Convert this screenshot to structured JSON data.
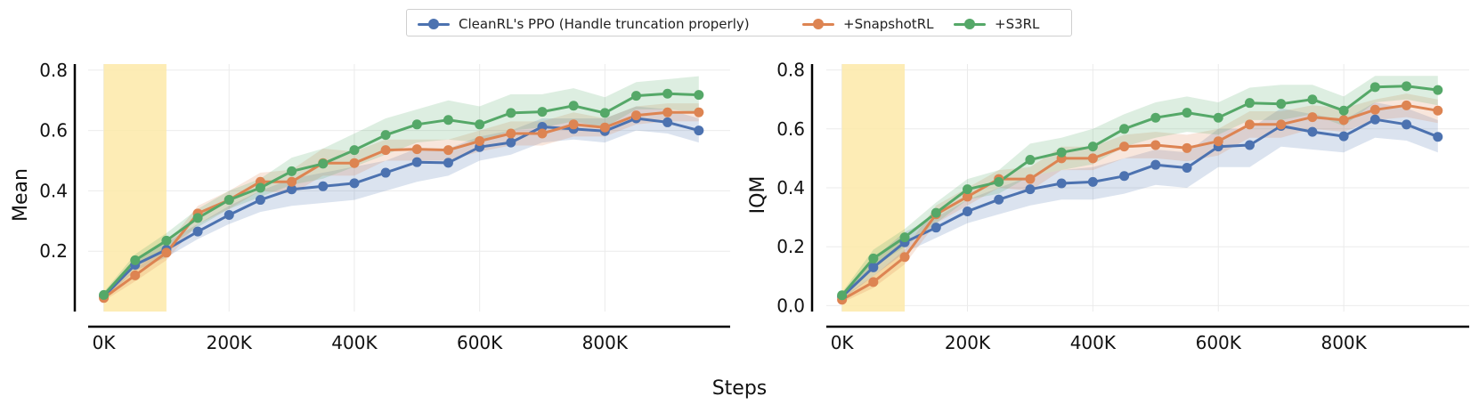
{
  "xlabel": "Steps",
  "legend": [
    {
      "label": "CleanRL's PPO (Handle truncation properly)",
      "color": "#4c72b0"
    },
    {
      "label": "+SnapshotRL",
      "color": "#dd8452"
    },
    {
      "label": "+S3RL",
      "color": "#55a868"
    }
  ],
  "highlight_color": "#fde9a8",
  "chart_data": [
    {
      "type": "line",
      "ylabel": "Mean",
      "xlabel": "Steps",
      "xlim": [
        -25000,
        1000000
      ],
      "ylim": [
        0.0,
        0.82
      ],
      "xticks": [
        0,
        200000,
        400000,
        600000,
        800000
      ],
      "xtick_labels": [
        "0K",
        "200K",
        "400K",
        "600K",
        "800K"
      ],
      "yticks": [
        0.2,
        0.4,
        0.6,
        0.8
      ],
      "ytick_labels": [
        "0.2",
        "0.4",
        "0.6",
        "0.8"
      ],
      "highlight_x": [
        0,
        100000
      ],
      "x": [
        0,
        50000,
        100000,
        150000,
        200000,
        250000,
        300000,
        350000,
        400000,
        450000,
        500000,
        550000,
        600000,
        650000,
        700000,
        750000,
        800000,
        850000,
        900000,
        950000
      ],
      "series": [
        {
          "name": "CleanRL's PPO (Handle truncation properly)",
          "values": [
            0.05,
            0.155,
            0.205,
            0.265,
            0.32,
            0.37,
            0.405,
            0.415,
            0.425,
            0.46,
            0.495,
            0.493,
            0.545,
            0.56,
            0.612,
            0.605,
            0.598,
            0.64,
            0.627,
            0.6
          ],
          "lower": [
            0.04,
            0.135,
            0.18,
            0.24,
            0.29,
            0.33,
            0.35,
            0.36,
            0.37,
            0.4,
            0.43,
            0.45,
            0.5,
            0.52,
            0.56,
            0.57,
            0.56,
            0.6,
            0.59,
            0.56
          ],
          "upper": [
            0.06,
            0.175,
            0.23,
            0.29,
            0.35,
            0.4,
            0.44,
            0.46,
            0.48,
            0.5,
            0.54,
            0.54,
            0.58,
            0.6,
            0.64,
            0.64,
            0.64,
            0.68,
            0.67,
            0.64
          ]
        },
        {
          "name": "+SnapshotRL",
          "values": [
            0.045,
            0.12,
            0.195,
            0.325,
            0.37,
            0.43,
            0.43,
            0.492,
            0.492,
            0.535,
            0.538,
            0.535,
            0.565,
            0.59,
            0.59,
            0.62,
            0.61,
            0.65,
            0.66,
            0.66
          ],
          "lower": [
            0.035,
            0.1,
            0.17,
            0.29,
            0.34,
            0.4,
            0.39,
            0.45,
            0.45,
            0.5,
            0.5,
            0.5,
            0.53,
            0.55,
            0.55,
            0.58,
            0.58,
            0.62,
            0.63,
            0.63
          ],
          "upper": [
            0.055,
            0.14,
            0.22,
            0.35,
            0.4,
            0.46,
            0.47,
            0.54,
            0.53,
            0.57,
            0.57,
            0.57,
            0.6,
            0.63,
            0.63,
            0.66,
            0.64,
            0.68,
            0.69,
            0.69
          ]
        },
        {
          "name": "+S3RL",
          "values": [
            0.055,
            0.17,
            0.235,
            0.31,
            0.37,
            0.41,
            0.465,
            0.49,
            0.535,
            0.585,
            0.62,
            0.635,
            0.62,
            0.658,
            0.662,
            0.682,
            0.658,
            0.715,
            0.722,
            0.718
          ],
          "lower": [
            0.045,
            0.15,
            0.21,
            0.28,
            0.34,
            0.38,
            0.42,
            0.44,
            0.48,
            0.52,
            0.56,
            0.57,
            0.56,
            0.6,
            0.61,
            0.63,
            0.61,
            0.67,
            0.67,
            0.66
          ],
          "upper": [
            0.065,
            0.19,
            0.26,
            0.34,
            0.4,
            0.44,
            0.51,
            0.54,
            0.59,
            0.64,
            0.67,
            0.7,
            0.68,
            0.72,
            0.72,
            0.74,
            0.71,
            0.76,
            0.77,
            0.78
          ]
        }
      ]
    },
    {
      "type": "line",
      "ylabel": "IQM",
      "xlabel": "Steps",
      "xlim": [
        -25000,
        1000000
      ],
      "ylim": [
        -0.02,
        0.82
      ],
      "xticks": [
        0,
        200000,
        400000,
        600000,
        800000
      ],
      "xtick_labels": [
        "0K",
        "200K",
        "400K",
        "600K",
        "800K"
      ],
      "yticks": [
        0.0,
        0.2,
        0.4,
        0.6,
        0.8
      ],
      "ytick_labels": [
        "0.0",
        "0.2",
        "0.4",
        "0.6",
        "0.8"
      ],
      "highlight_x": [
        0,
        100000
      ],
      "x": [
        0,
        50000,
        100000,
        150000,
        200000,
        250000,
        300000,
        350000,
        400000,
        450000,
        500000,
        550000,
        600000,
        650000,
        700000,
        750000,
        800000,
        850000,
        900000,
        950000
      ],
      "series": [
        {
          "name": "CleanRL's PPO (Handle truncation properly)",
          "values": [
            0.03,
            0.13,
            0.215,
            0.265,
            0.32,
            0.36,
            0.395,
            0.415,
            0.42,
            0.44,
            0.478,
            0.468,
            0.54,
            0.545,
            0.61,
            0.59,
            0.575,
            0.632,
            0.615,
            0.573
          ],
          "lower": [
            0.02,
            0.1,
            0.18,
            0.23,
            0.28,
            0.31,
            0.34,
            0.36,
            0.36,
            0.38,
            0.41,
            0.4,
            0.47,
            0.47,
            0.54,
            0.53,
            0.52,
            0.57,
            0.56,
            0.52
          ],
          "upper": [
            0.04,
            0.16,
            0.25,
            0.3,
            0.36,
            0.4,
            0.44,
            0.46,
            0.47,
            0.5,
            0.53,
            0.52,
            0.6,
            0.6,
            0.67,
            0.65,
            0.63,
            0.69,
            0.67,
            0.63
          ]
        },
        {
          "name": "+SnapshotRL",
          "values": [
            0.02,
            0.08,
            0.165,
            0.31,
            0.37,
            0.43,
            0.43,
            0.5,
            0.5,
            0.54,
            0.545,
            0.535,
            0.558,
            0.615,
            0.615,
            0.64,
            0.63,
            0.665,
            0.68,
            0.662
          ],
          "lower": [
            0.01,
            0.06,
            0.14,
            0.28,
            0.34,
            0.4,
            0.39,
            0.46,
            0.46,
            0.5,
            0.5,
            0.49,
            0.51,
            0.57,
            0.57,
            0.6,
            0.59,
            0.63,
            0.64,
            0.62
          ],
          "upper": [
            0.03,
            0.1,
            0.19,
            0.34,
            0.4,
            0.46,
            0.47,
            0.54,
            0.54,
            0.58,
            0.59,
            0.58,
            0.6,
            0.66,
            0.66,
            0.68,
            0.67,
            0.7,
            0.72,
            0.7
          ]
        },
        {
          "name": "+S3RL",
          "values": [
            0.035,
            0.16,
            0.232,
            0.315,
            0.395,
            0.42,
            0.495,
            0.52,
            0.54,
            0.6,
            0.638,
            0.655,
            0.638,
            0.688,
            0.685,
            0.7,
            0.662,
            0.742,
            0.745,
            0.732
          ],
          "lower": [
            0.025,
            0.13,
            0.2,
            0.28,
            0.36,
            0.38,
            0.44,
            0.46,
            0.48,
            0.54,
            0.57,
            0.59,
            0.58,
            0.63,
            0.63,
            0.65,
            0.61,
            0.69,
            0.7,
            0.68
          ],
          "upper": [
            0.045,
            0.19,
            0.26,
            0.35,
            0.43,
            0.46,
            0.55,
            0.57,
            0.6,
            0.65,
            0.69,
            0.71,
            0.69,
            0.74,
            0.75,
            0.75,
            0.71,
            0.78,
            0.78,
            0.78
          ]
        }
      ]
    }
  ]
}
